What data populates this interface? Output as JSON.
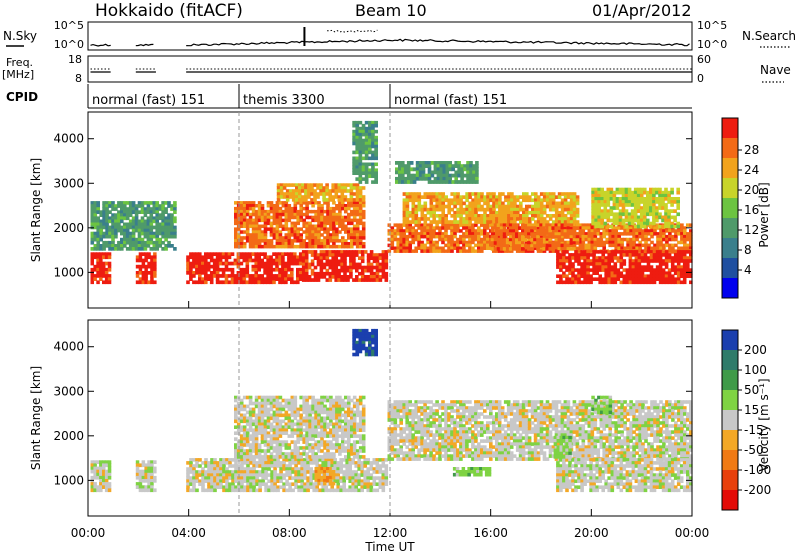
{
  "header": {
    "site": "Hokkaido (fitACF)",
    "beam": "Beam 10",
    "date": "01/Apr/2012"
  },
  "colors": {
    "power_scale": [
      "#0000ee",
      "#1f4fa0",
      "#3a7f8c",
      "#4f9a6a",
      "#6cc441",
      "#c8d42a",
      "#f2a31c",
      "#f36a16",
      "#ee1c10"
    ],
    "velocity_scale": [
      "#1b3fae",
      "#2f7b6a",
      "#3f9a48",
      "#7fd343",
      "#c8c8c8",
      "#f3a826",
      "#f07a14",
      "#e8400c",
      "#e40b07"
    ],
    "bg": "#ffffff",
    "ground_scatter": "#c8c8c8"
  },
  "chart_data": [
    {
      "type": "line",
      "panel": "noise",
      "title": "",
      "ylabel_left": "N.Sky",
      "ylabel_right": "N.Search",
      "left_ticks": [
        "10^5",
        "10^0"
      ],
      "right_ticks": [
        "10^5",
        "10^0"
      ],
      "x_range_hours": [
        0,
        24
      ],
      "series": [
        {
          "name": "N.Sky",
          "style": "solid"
        },
        {
          "name": "N.Search",
          "style": "dotted"
        }
      ]
    },
    {
      "type": "line",
      "panel": "frequency",
      "ylabel_left": "Freq. [MHz]",
      "ylabel_right": "Nave",
      "left_ticks": [
        18,
        8
      ],
      "right_ticks": [
        60,
        0
      ],
      "x_range_hours": [
        0,
        24
      ],
      "series": [
        {
          "name": "Freq.",
          "style": "solid"
        },
        {
          "name": "Nave",
          "style": "dotted"
        }
      ]
    },
    {
      "type": "table",
      "panel": "cpid",
      "label": "CPID",
      "segments": [
        {
          "start_hour": 0,
          "end_hour": 6,
          "text": "normal (fast) 151"
        },
        {
          "start_hour": 6,
          "end_hour": 12,
          "text": "themis 3300"
        },
        {
          "start_hour": 12,
          "end_hour": 24,
          "text": "normal (fast) 151"
        }
      ]
    },
    {
      "type": "heatmap",
      "panel": "power",
      "ylabel": "Slant Range [km]",
      "yticks": [
        1000,
        2000,
        3000,
        4000
      ],
      "ylim": [
        200,
        4600
      ],
      "x_range_hours": [
        0,
        24
      ],
      "colorbar_label": "Power [dB]",
      "colorbar_ticks": [
        4,
        8,
        12,
        16,
        20,
        24,
        28
      ],
      "bands": [
        {
          "start": 0.1,
          "end": 0.9,
          "range_low": 750,
          "range_high": 1450,
          "level": 8
        },
        {
          "start": 1.9,
          "end": 2.7,
          "range_low": 750,
          "range_high": 1450,
          "level": 8
        },
        {
          "start": 3.9,
          "end": 8.5,
          "range_low": 750,
          "range_high": 1450,
          "level": 8
        },
        {
          "start": 8.5,
          "end": 11.9,
          "range_low": 800,
          "range_high": 1500,
          "level": 8
        },
        {
          "start": 11.9,
          "end": 24.0,
          "range_low": 1450,
          "range_high": 2100,
          "level": 7
        },
        {
          "start": 5.8,
          "end": 11.0,
          "range_low": 1550,
          "range_high": 2600,
          "level": 7
        },
        {
          "start": 7.5,
          "end": 11.0,
          "range_low": 2600,
          "range_high": 3000,
          "level": 6
        },
        {
          "start": 12.5,
          "end": 19.5,
          "range_low": 2100,
          "range_high": 2800,
          "level": 6
        },
        {
          "start": 16.0,
          "end": 19.5,
          "range_low": 1500,
          "range_high": 2100,
          "level": 7
        },
        {
          "start": 18.6,
          "end": 24.0,
          "range_low": 750,
          "range_high": 1500,
          "level": 8
        },
        {
          "start": 20.0,
          "end": 23.5,
          "range_low": 2000,
          "range_high": 2900,
          "level": 5
        },
        {
          "start": 0.1,
          "end": 3.5,
          "range_low": 1500,
          "range_high": 2600,
          "level": 3
        },
        {
          "start": 10.5,
          "end": 11.5,
          "range_low": 3000,
          "range_high": 4400,
          "level": 3
        },
        {
          "start": 12.2,
          "end": 15.5,
          "range_low": 3000,
          "range_high": 3500,
          "level": 3
        }
      ]
    },
    {
      "type": "heatmap",
      "panel": "velocity",
      "ylabel": "Slant Range [km]",
      "yticks": [
        1000,
        2000,
        3000,
        4000
      ],
      "ylim": [
        200,
        4600
      ],
      "x_range_hours": [
        0,
        24
      ],
      "xlabel": "Time UT",
      "xticks": [
        "00:00",
        "04:00",
        "08:00",
        "12:00",
        "16:00",
        "20:00",
        "00:00"
      ],
      "colorbar_label": "Velocity [m s^-1]",
      "colorbar_ticks": [
        200,
        100,
        50,
        15,
        -15,
        -50,
        -100,
        -200
      ],
      "bands": [
        {
          "start": 0.1,
          "end": 0.9,
          "range_low": 750,
          "range_high": 1450,
          "level": 4
        },
        {
          "start": 1.9,
          "end": 2.7,
          "range_low": 750,
          "range_high": 1450,
          "level": 4
        },
        {
          "start": 3.9,
          "end": 11.9,
          "range_low": 750,
          "range_high": 1500,
          "level": 4
        },
        {
          "start": 5.8,
          "end": 11.0,
          "range_low": 1500,
          "range_high": 2900,
          "level": 4
        },
        {
          "start": 11.9,
          "end": 24.0,
          "range_low": 1450,
          "range_high": 2800,
          "level": 4
        },
        {
          "start": 18.6,
          "end": 24.0,
          "range_low": 750,
          "range_high": 1500,
          "level": 4
        },
        {
          "start": 9.0,
          "end": 9.8,
          "range_low": 900,
          "range_high": 1300,
          "level": 5
        },
        {
          "start": 14.5,
          "end": 16.0,
          "range_low": 1100,
          "range_high": 1300,
          "level": 3
        },
        {
          "start": 18.5,
          "end": 19.2,
          "range_low": 1500,
          "range_high": 2000,
          "level": 3
        },
        {
          "start": 20.0,
          "end": 20.8,
          "range_low": 2500,
          "range_high": 2900,
          "level": 3
        },
        {
          "start": 10.5,
          "end": 11.5,
          "range_low": 3800,
          "range_high": 4400,
          "level": 0
        }
      ]
    }
  ]
}
